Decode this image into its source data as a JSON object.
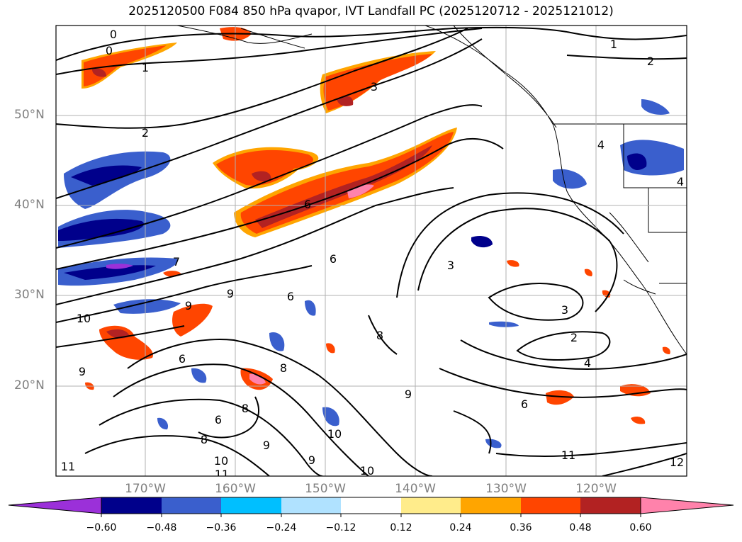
{
  "title": "2025120500 F084 850 hPa qvapor, IVT Landfall PC (2025120712 - 2025121012)",
  "lat_labels": [
    "50°N",
    "40°N",
    "30°N",
    "20°N"
  ],
  "lon_labels": [
    "170°W",
    "160°W",
    "150°W",
    "140°W",
    "130°W",
    "120°W"
  ],
  "colorbar": {
    "ticks": [
      "−0.60",
      "−0.48",
      "−0.36",
      "−0.24",
      "−0.12",
      "0.12",
      "0.24",
      "0.36",
      "0.48",
      "0.60"
    ],
    "colors": [
      "#9b30d9",
      "#00008b",
      "#3a5fcd",
      "#00bfff",
      "#b0e2ff",
      "#ffffff",
      "#ffec8b",
      "#ffa500",
      "#ff4500",
      "#b22222",
      "#ff82ab"
    ]
  },
  "contour_labels": [
    "0",
    "0",
    "1",
    "1",
    "2",
    "2",
    "3",
    "3",
    "3",
    "4",
    "4",
    "4",
    "6",
    "6",
    "6",
    "6",
    "6",
    "7",
    "8",
    "8",
    "8",
    "8",
    "9",
    "9",
    "9",
    "9",
    "9",
    "9",
    "10",
    "10",
    "10",
    "10",
    "11",
    "11",
    "11",
    "12",
    "2",
    "6"
  ]
}
